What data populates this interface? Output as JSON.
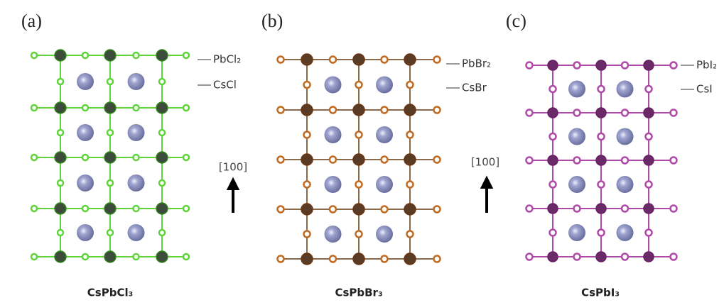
{
  "panels": [
    {
      "label": "(a)",
      "top_layer": "PbCl₂",
      "mid_layer": "CsCl",
      "direction": "[100]",
      "caption": "CsPbCl₃"
    },
    {
      "label": "(b)",
      "top_layer": "PbBr₂",
      "mid_layer": "CsBr",
      "direction": "[100]",
      "caption": "CsPbBr₃"
    },
    {
      "label": "(c)",
      "top_layer": "PbI₂",
      "mid_layer": "CsI",
      "caption": "CsPbI₃"
    }
  ]
}
